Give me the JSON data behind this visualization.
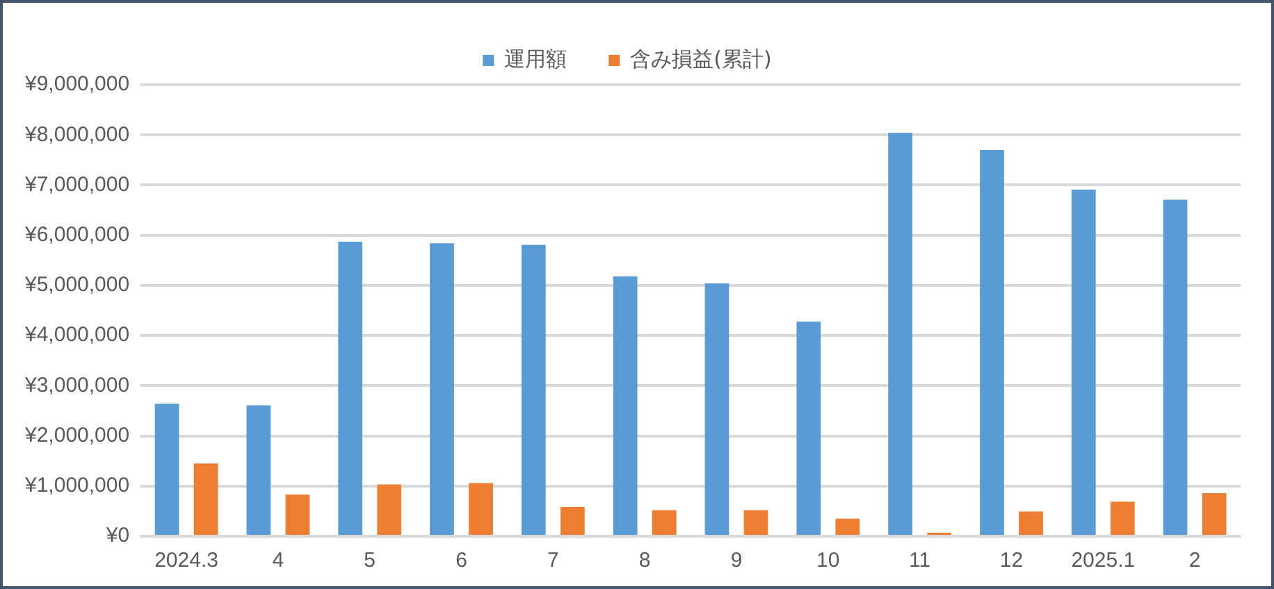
{
  "chart_data": {
    "type": "bar",
    "categories": [
      "2024.3",
      "4",
      "5",
      "6",
      "7",
      "8",
      "9",
      "10",
      "11",
      "12",
      "2025.1",
      "2"
    ],
    "series": [
      {
        "name": "運用額",
        "color": "#5b9bd5",
        "values": [
          2640000,
          2610000,
          5870000,
          5840000,
          5810000,
          5180000,
          5040000,
          4280000,
          8040000,
          7700000,
          6910000,
          6710000
        ]
      },
      {
        "name": "含み損益(累計)",
        "color": "#ed7d31",
        "values": [
          1450000,
          830000,
          1030000,
          1060000,
          580000,
          520000,
          520000,
          350000,
          70000,
          490000,
          690000,
          860000
        ]
      }
    ],
    "ylim": [
      0,
      9000000
    ],
    "yticks": [
      {
        "value": 0,
        "label": "¥0"
      },
      {
        "value": 1000000,
        "label": "¥1,000,000"
      },
      {
        "value": 2000000,
        "label": "¥2,000,000"
      },
      {
        "value": 3000000,
        "label": "¥3,000,000"
      },
      {
        "value": 4000000,
        "label": "¥4,000,000"
      },
      {
        "value": 5000000,
        "label": "¥5,000,000"
      },
      {
        "value": 6000000,
        "label": "¥6,000,000"
      },
      {
        "value": 7000000,
        "label": "¥7,000,000"
      },
      {
        "value": 8000000,
        "label": "¥8,000,000"
      },
      {
        "value": 9000000,
        "label": "¥9,000,000"
      }
    ],
    "grid": "y",
    "legend": "top"
  }
}
